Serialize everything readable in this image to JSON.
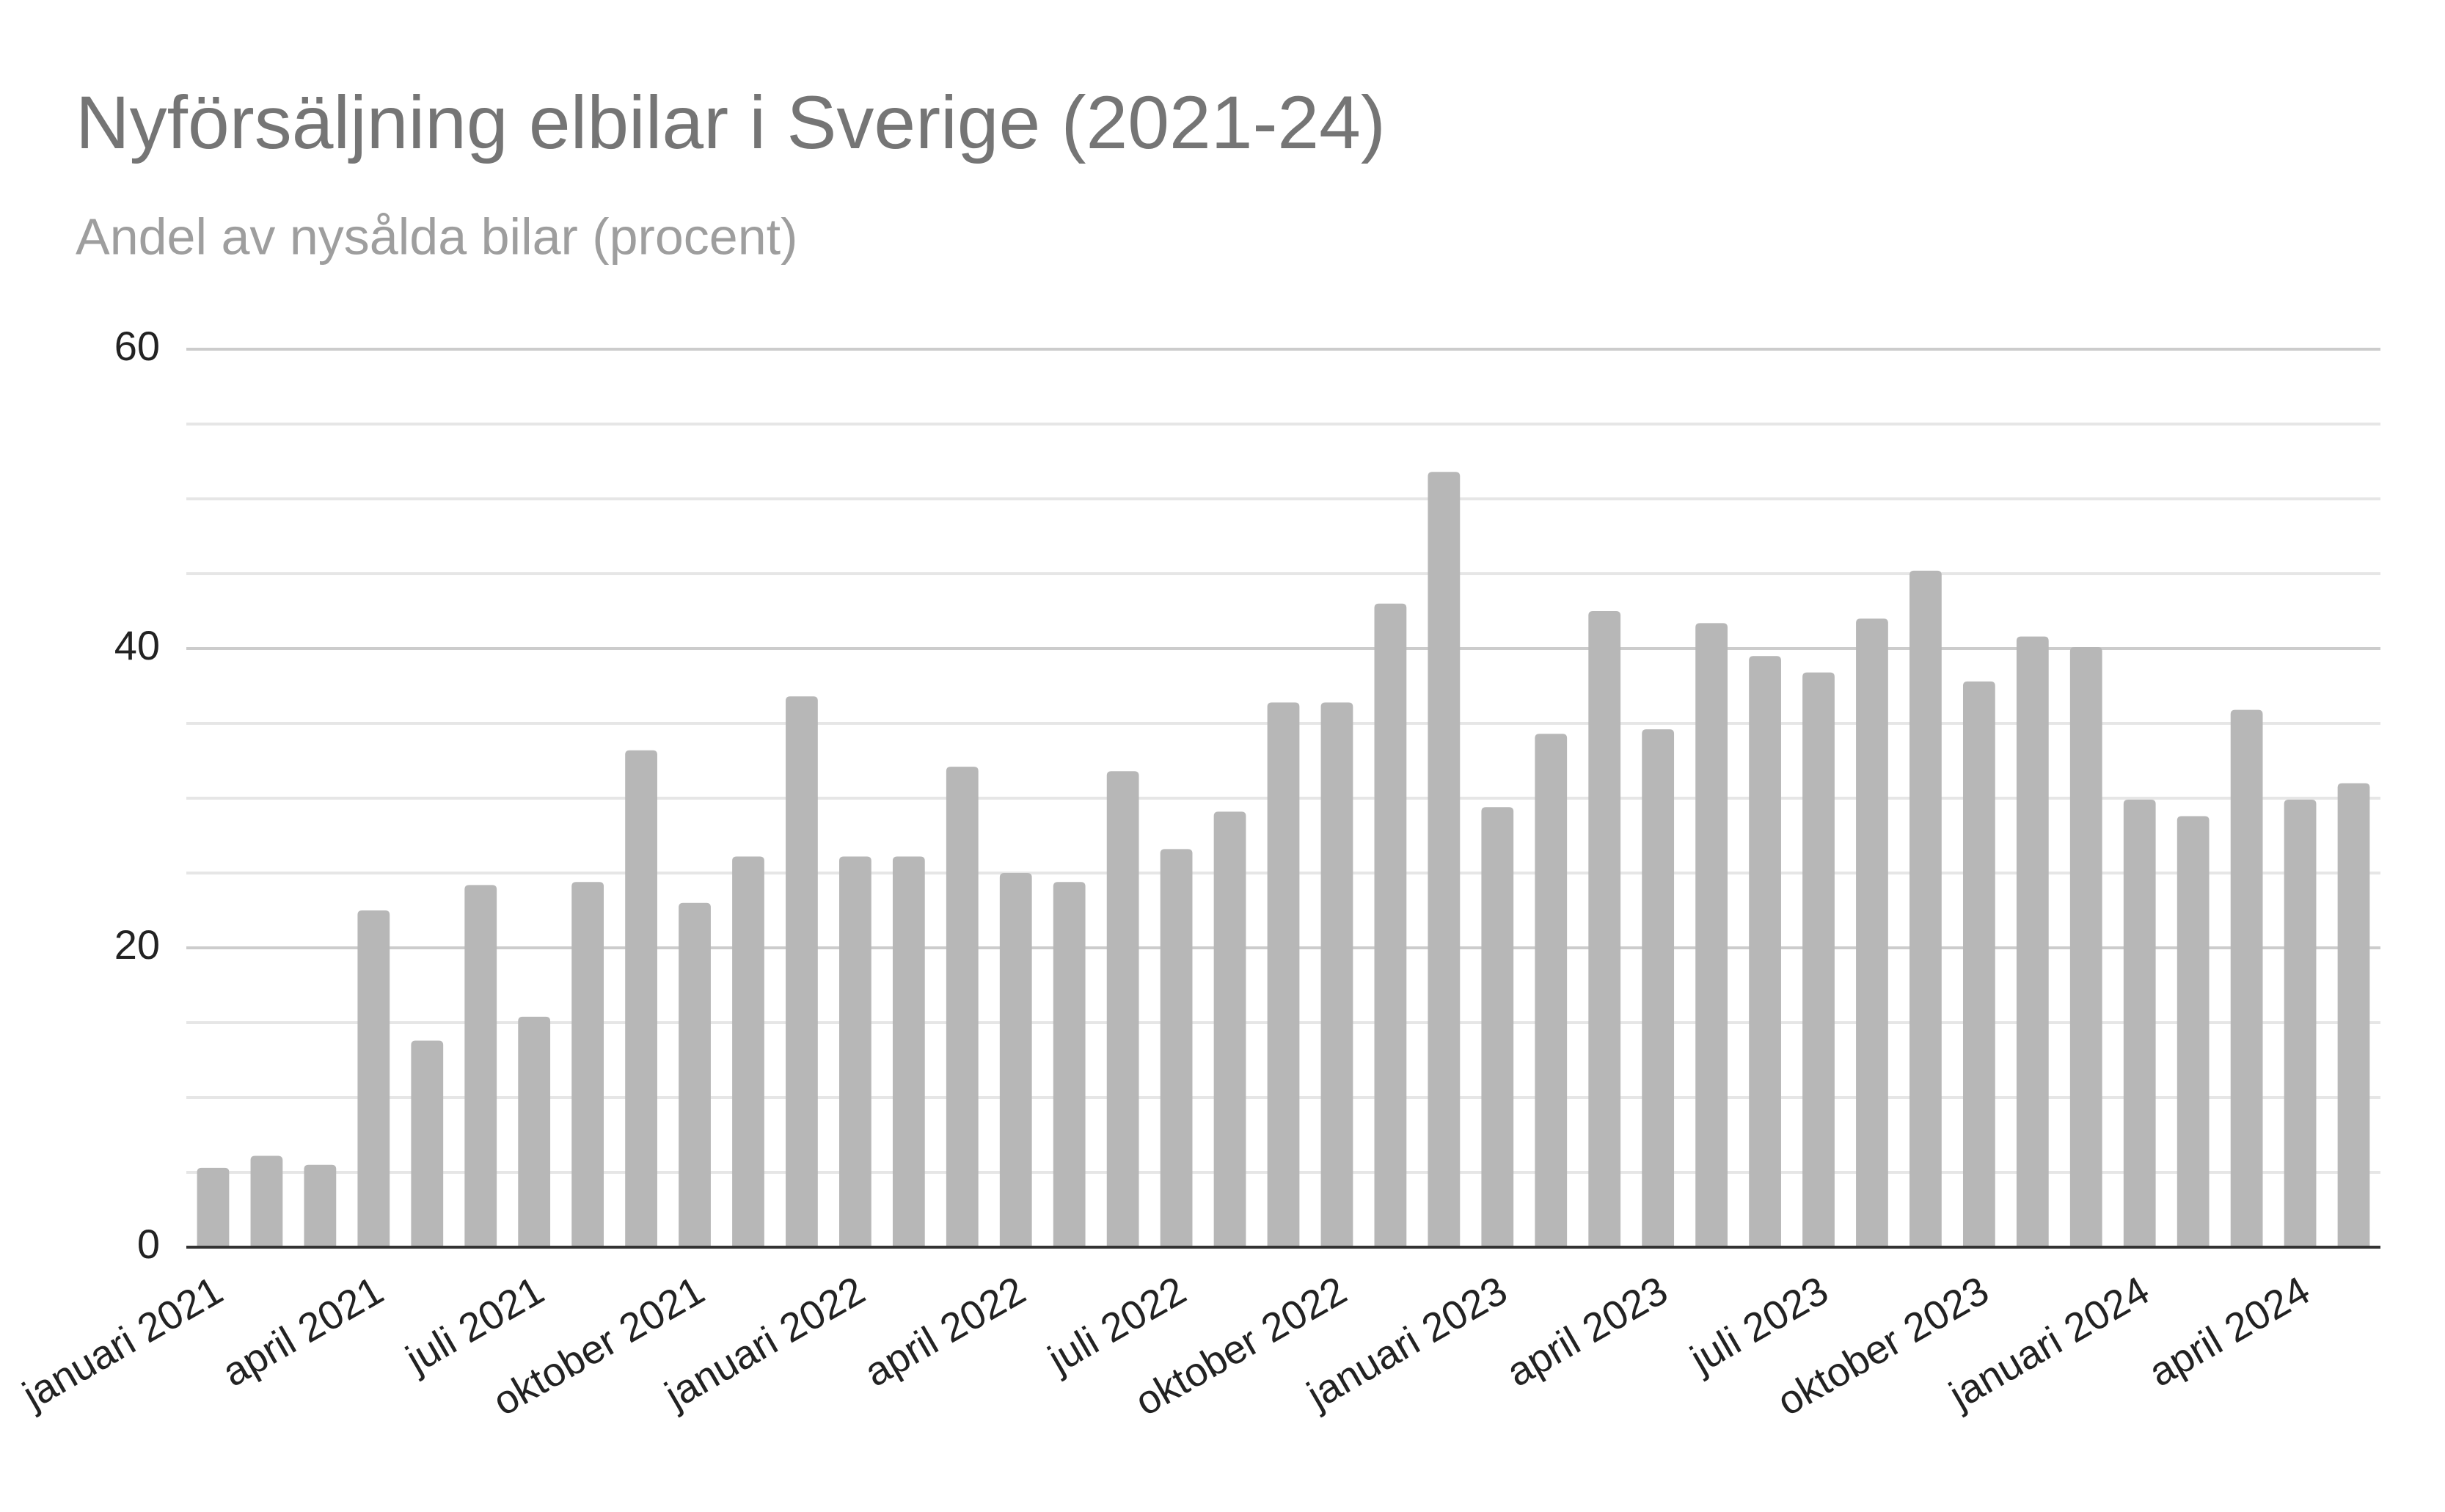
{
  "chart_data": {
    "type": "bar",
    "title": "Nyförsäljning elbilar i Sverige (2021-24)",
    "subtitle": "Andel av nysålda bilar (procent)",
    "categories": [
      "januari 2021",
      null,
      null,
      "april 2021",
      null,
      null,
      "juli 2021",
      null,
      null,
      "oktober 2021",
      null,
      null,
      "januari 2022",
      null,
      null,
      "april 2022",
      null,
      null,
      "juli 2022",
      null,
      null,
      "oktober 2022",
      null,
      null,
      "januari 2023",
      null,
      null,
      "april 2023",
      null,
      null,
      "juli 2023",
      null,
      null,
      "oktober 2023",
      null,
      null,
      "januari 2024",
      null,
      null,
      "april 2024",
      null
    ],
    "values": [
      5.3,
      6.1,
      5.5,
      22.5,
      13.8,
      24.2,
      15.4,
      24.4,
      33.2,
      23.0,
      26.1,
      36.8,
      26.1,
      26.1,
      32.1,
      25.0,
      24.4,
      31.8,
      26.6,
      29.1,
      36.4,
      36.4,
      43.0,
      51.8,
      29.4,
      34.3,
      42.5,
      34.6,
      41.7,
      39.5,
      38.4,
      42.0,
      45.2,
      37.8,
      40.8,
      40.1,
      29.9,
      28.8,
      35.9,
      29.9,
      31.0
    ],
    "color": "#b7b7b7",
    "ylim": [
      0,
      60
    ],
    "yticks": [
      0,
      20,
      40,
      60
    ],
    "y_minor_ticks": [
      5,
      10,
      15,
      25,
      30,
      35,
      45,
      50,
      55
    ],
    "grid": true
  }
}
